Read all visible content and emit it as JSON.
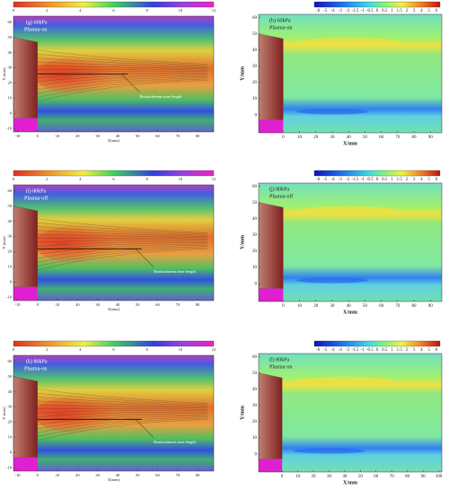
{
  "panels": [
    {
      "label": "(g) 60kPa",
      "condition": "Plasma-on",
      "annotation": "Reattachment zone length",
      "xlabel": "X(mm)",
      "ylabel": "Y (mm)",
      "xlim": [
        -12,
        88
      ],
      "ylim": [
        -12,
        64
      ],
      "xticks": [
        -10,
        0,
        10,
        20,
        30,
        40,
        50,
        60,
        70,
        80
      ],
      "yticks": [
        -10,
        0,
        10,
        20,
        30,
        40,
        50,
        60
      ],
      "colorbar_ticks": [
        0,
        2,
        4,
        6,
        8,
        10,
        12
      ]
    },
    {
      "label": "(h) 60kPa",
      "condition": "Plasma-on",
      "xlabel": "X/mm",
      "ylabel": "Y/mm",
      "xlim": [
        -15,
        97
      ],
      "ylim": [
        -11,
        62
      ],
      "xticks": [
        0,
        10,
        20,
        30,
        40,
        50,
        60,
        70,
        80,
        90
      ],
      "yticks": [
        0,
        10,
        20,
        30,
        40,
        50,
        60
      ],
      "colorbar_ticks": [
        -6,
        -5,
        -4,
        -3,
        -2,
        -1.5,
        -1,
        -0.5,
        0,
        0.5,
        1,
        1.5,
        2,
        3,
        4,
        5,
        6
      ]
    },
    {
      "label": "(i) 80kPa",
      "condition": "Plasma-off",
      "annotation": "Reattachment zone length",
      "xlabel": "X(mm)",
      "ylabel": "Y (mm)",
      "xlim": [
        -12,
        88
      ],
      "ylim": [
        -12,
        64
      ],
      "xticks": [
        -10,
        0,
        10,
        20,
        30,
        40,
        50,
        60,
        70,
        80
      ],
      "yticks": [
        -10,
        0,
        10,
        20,
        30,
        40,
        50,
        60
      ],
      "colorbar_ticks": [
        0,
        2,
        4,
        6,
        8,
        10,
        12
      ]
    },
    {
      "label": "(j) 80kPa",
      "condition": "Plasma-off",
      "xlabel": "X/mm",
      "ylabel": "Y/mm",
      "xlim": [
        -15,
        97
      ],
      "ylim": [
        -11,
        62
      ],
      "xticks": [
        0,
        10,
        20,
        30,
        40,
        50,
        60,
        70,
        80,
        90
      ],
      "yticks": [
        0,
        10,
        20,
        30,
        40,
        50,
        60
      ],
      "colorbar_ticks": [
        -6,
        -5,
        -4,
        -3,
        -2,
        -1.5,
        -1,
        -0.5,
        0,
        0.5,
        1,
        1.5,
        2,
        3,
        4,
        5,
        6
      ]
    },
    {
      "label": "(k) 80kPa",
      "condition": "Plasma-on",
      "annotation": "Reattachment zone length",
      "xlabel": "X(mm)",
      "ylabel": "Y (mm)",
      "xlim": [
        -12,
        88
      ],
      "ylim": [
        -12,
        64
      ],
      "xticks": [
        -10,
        0,
        10,
        20,
        30,
        40,
        50,
        60,
        70,
        80
      ],
      "yticks": [
        -10,
        0,
        10,
        20,
        30,
        40,
        50,
        60
      ],
      "colorbar_ticks": [
        0,
        2,
        4,
        6,
        8,
        10,
        12
      ]
    },
    {
      "label": "(l) 80kPa",
      "condition": "Plasma-on",
      "xlabel": "X/mm",
      "ylabel": "Y/mm",
      "xlim": [
        -15,
        102
      ],
      "ylim": [
        -11,
        62
      ],
      "xticks": [
        0,
        10,
        20,
        30,
        40,
        50,
        60,
        70,
        80,
        90,
        100
      ],
      "yticks": [
        0,
        10,
        20,
        30,
        40,
        50,
        60
      ],
      "colorbar_ticks": [
        -6,
        -5,
        -4,
        -3,
        -2,
        -1.5,
        -1,
        -0.5,
        0,
        0.5,
        1,
        1.5,
        2,
        3,
        4,
        5,
        6
      ]
    }
  ]
}
